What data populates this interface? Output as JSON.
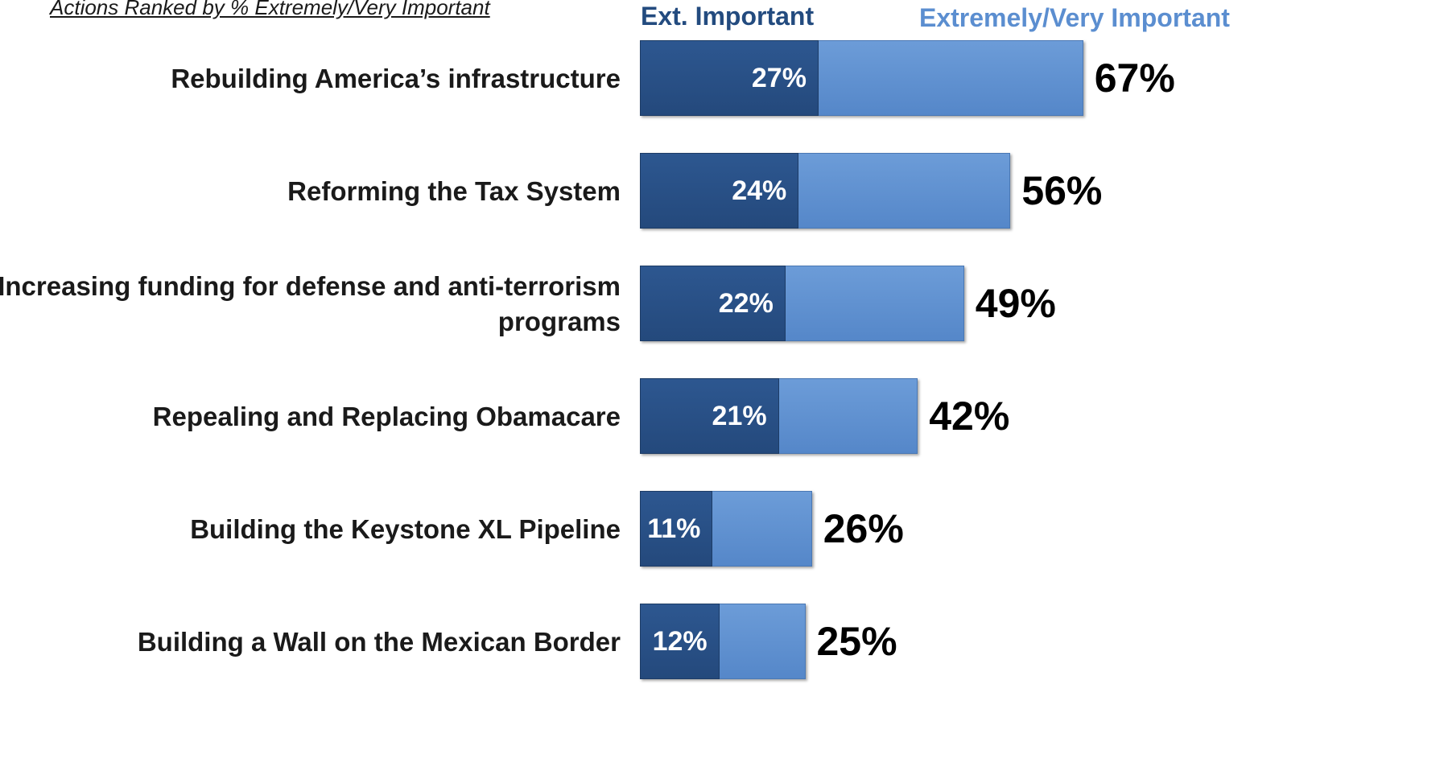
{
  "chart_data": {
    "type": "bar",
    "orientation": "horizontal",
    "subtitle": "Actions Ranked by % Extremely/Very  Important",
    "legend": [
      {
        "name": "Ext. Important",
        "color": "#234b7f"
      },
      {
        "name": "Extremely/Very Important",
        "color": "#5b8ed0"
      }
    ],
    "categories": [
      "Rebuilding America’s infrastructure",
      "Reforming the Tax System",
      "Increasing funding for defense and anti-terrorism programs",
      "Repealing and Replacing Obamacare",
      "Building the Keystone XL Pipeline",
      "Building a Wall on the Mexican Border"
    ],
    "series": [
      {
        "name": "Ext. Important",
        "values": [
          27,
          24,
          22,
          21,
          11,
          12
        ],
        "labels": [
          "27%",
          "24%",
          "22%",
          "21%",
          "11%",
          "12%"
        ]
      },
      {
        "name": "Extremely/Very Important",
        "values": [
          67,
          56,
          49,
          42,
          26,
          25
        ],
        "labels": [
          "67%",
          "56%",
          "49%",
          "42%",
          "26%",
          "25%"
        ]
      }
    ],
    "xlim": [
      0,
      100
    ]
  }
}
